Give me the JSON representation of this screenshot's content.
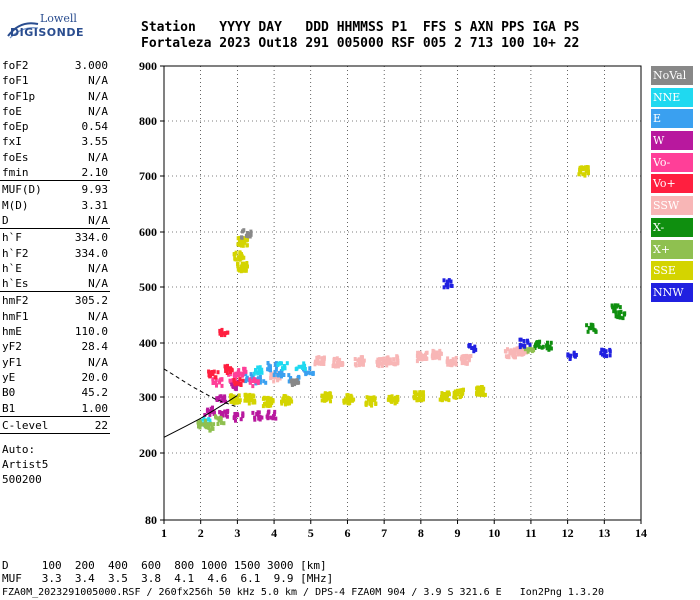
{
  "logo": {
    "line1": "Lowell",
    "line2": "DIGISONDE"
  },
  "header": {
    "labels": [
      "Station",
      "YYYY",
      "DAY",
      "DDD",
      "HHMMSS",
      "P1",
      "FFS",
      "S",
      "AXN",
      "PPS",
      "IGA",
      "PS"
    ],
    "values": [
      "Fortaleza",
      "2023",
      "Out18",
      "291",
      "005000",
      "RSF",
      "005",
      "2",
      "713",
      "100",
      "10+",
      "22"
    ]
  },
  "params": {
    "group1": [
      {
        "k": "foF2",
        "v": "3.000"
      },
      {
        "k": "foF1",
        "v": "N/A"
      },
      {
        "k": "foF1p",
        "v": "N/A"
      },
      {
        "k": "foE",
        "v": "N/A"
      },
      {
        "k": "foEp",
        "v": "0.54"
      },
      {
        "k": "fxI",
        "v": "3.55"
      },
      {
        "k": "foEs",
        "v": "N/A"
      },
      {
        "k": "fmin",
        "v": "2.10"
      }
    ],
    "group2": [
      {
        "k": "MUF(D)",
        "v": "9.93"
      },
      {
        "k": "M(D)",
        "v": "3.31"
      },
      {
        "k": "D",
        "v": "N/A"
      }
    ],
    "group3": [
      {
        "k": "h`F",
        "v": "334.0"
      },
      {
        "k": "h`F2",
        "v": "334.0"
      },
      {
        "k": "h`E",
        "v": "N/A"
      },
      {
        "k": "h`Es",
        "v": "N/A"
      }
    ],
    "group4": [
      {
        "k": "hmF2",
        "v": "305.2"
      },
      {
        "k": "hmF1",
        "v": "N/A"
      },
      {
        "k": "hmE",
        "v": "110.0"
      },
      {
        "k": "yF2",
        "v": "28.4"
      },
      {
        "k": "yF1",
        "v": "N/A"
      },
      {
        "k": "yE",
        "v": "20.0"
      },
      {
        "k": "B0",
        "v": "45.2"
      },
      {
        "k": "B1",
        "v": "1.00"
      }
    ],
    "group5": [
      {
        "k": "C-level",
        "v": "22"
      }
    ],
    "auto_lines": [
      "Auto:",
      "Artist5",
      "500200"
    ]
  },
  "legend": [
    {
      "label": "NoVal",
      "color": "#888888"
    },
    {
      "label": "NNE",
      "color": "#1fd9f0"
    },
    {
      "label": "E",
      "color": "#3aa0f0"
    },
    {
      "label": "W",
      "color": "#b8189e"
    },
    {
      "label": "Vo-",
      "color": "#ff3f98"
    },
    {
      "label": "Vo+",
      "color": "#ff1f3f"
    },
    {
      "label": "SSW",
      "color": "#f8b6b6"
    },
    {
      "label": "X-",
      "color": "#0f8f0f"
    },
    {
      "label": "X+",
      "color": "#8fc050"
    },
    {
      "label": "SSE",
      "color": "#d4d400"
    },
    {
      "label": "NNW",
      "color": "#2020e0"
    }
  ],
  "footer": {
    "d_label": "D",
    "d_values": [
      "100",
      "200",
      "400",
      "600",
      "800",
      "1000",
      "1500",
      "3000",
      "[km]"
    ],
    "muf_label": "MUF",
    "muf_values": [
      "3.3",
      "3.4",
      "3.5",
      "3.8",
      "4.1",
      "4.6",
      "6.1",
      "9.9",
      "[MHz]"
    ],
    "info": "FZA0M_2023291005000.RSF / 260fx256h 50 kHz 5.0 km / DPS-4 FZA0M 904 / 3.9 S 321.6 E   Ion2Png 1.3.20"
  },
  "chart_data": {
    "type": "scatter",
    "x": {
      "min": 1,
      "max": 14,
      "ticks": [
        1,
        2,
        3,
        4,
        5,
        6,
        7,
        8,
        9,
        10,
        11,
        12,
        13,
        14
      ],
      "unit": "MHz"
    },
    "y": {
      "min": 80,
      "max": 900,
      "ticks": [
        80,
        200,
        300,
        400,
        500,
        600,
        700,
        800,
        900
      ],
      "unit": "km"
    },
    "echo_clusters": [
      {
        "name": "SSE",
        "color": "#d4d400",
        "points": [
          [
            2.9,
            300
          ],
          [
            3.3,
            300
          ],
          [
            3.8,
            295
          ],
          [
            4.3,
            298
          ],
          [
            5.4,
            303
          ],
          [
            6.0,
            300
          ],
          [
            6.6,
            296
          ],
          [
            7.2,
            300
          ],
          [
            7.9,
            305
          ],
          [
            8.6,
            305
          ],
          [
            9.0,
            310
          ],
          [
            9.6,
            315
          ],
          [
            3.0,
            560
          ],
          [
            3.1,
            585
          ],
          [
            3.1,
            540
          ],
          [
            12.4,
            712
          ]
        ]
      },
      {
        "name": "SSW",
        "color": "#f8b6b6",
        "points": [
          [
            4.0,
            340
          ],
          [
            5.2,
            372
          ],
          [
            5.7,
            368
          ],
          [
            6.3,
            370
          ],
          [
            6.9,
            368
          ],
          [
            7.2,
            372
          ],
          [
            8.0,
            378
          ],
          [
            8.4,
            382
          ],
          [
            8.8,
            370
          ],
          [
            9.2,
            372
          ],
          [
            10.4,
            385
          ],
          [
            10.7,
            390
          ]
        ]
      },
      {
        "name": "W",
        "color": "#b8189e",
        "points": [
          [
            2.2,
            278
          ],
          [
            2.6,
            272
          ],
          [
            3.0,
            268
          ],
          [
            3.5,
            270
          ],
          [
            3.9,
            272
          ],
          [
            2.5,
            300
          ],
          [
            2.9,
            325
          ]
        ]
      },
      {
        "name": "E",
        "color": "#3aa0f0",
        "points": [
          [
            3.3,
            340
          ],
          [
            3.6,
            335
          ],
          [
            4.1,
            345
          ],
          [
            4.5,
            338
          ],
          [
            4.9,
            350
          ],
          [
            3.9,
            360
          ]
        ]
      },
      {
        "name": "NNE",
        "color": "#1fd9f0",
        "points": [
          [
            3.5,
            352
          ],
          [
            4.2,
            362
          ],
          [
            4.7,
            360
          ],
          [
            2.1,
            258
          ]
        ]
      },
      {
        "name": "Vo-",
        "color": "#ff3f98",
        "points": [
          [
            2.4,
            330
          ],
          [
            2.8,
            340
          ],
          [
            3.1,
            350
          ],
          [
            3.4,
            330
          ]
        ]
      },
      {
        "name": "Vo+",
        "color": "#ff1f3f",
        "points": [
          [
            2.3,
            345
          ],
          [
            2.7,
            355
          ],
          [
            3.0,
            330
          ],
          [
            2.6,
            420
          ]
        ]
      },
      {
        "name": "X-",
        "color": "#0f8f0f",
        "points": [
          [
            11.2,
            400
          ],
          [
            11.4,
            398
          ],
          [
            12.6,
            430
          ],
          [
            13.3,
            465
          ],
          [
            13.4,
            455
          ]
        ]
      },
      {
        "name": "X+",
        "color": "#8fc050",
        "points": [
          [
            2.0,
            255
          ],
          [
            2.2,
            250
          ],
          [
            2.5,
            262
          ],
          [
            10.9,
            392
          ]
        ]
      },
      {
        "name": "NNW",
        "color": "#2020e0",
        "points": [
          [
            9.4,
            395
          ],
          [
            8.7,
            510
          ],
          [
            10.8,
            403
          ],
          [
            13.0,
            385
          ],
          [
            12.1,
            380
          ]
        ]
      },
      {
        "name": "NoVal",
        "color": "#888888",
        "points": [
          [
            3.2,
            600
          ],
          [
            4.5,
            330
          ]
        ]
      }
    ],
    "profile_curve": [
      [
        1.0,
        228
      ],
      [
        1.6,
        248
      ],
      [
        2.0,
        262
      ],
      [
        2.4,
        278
      ],
      [
        2.7,
        290
      ],
      [
        3.0,
        303
      ]
    ],
    "trace_dashed": [
      [
        1.0,
        352
      ],
      [
        1.8,
        318
      ],
      [
        2.4,
        296
      ],
      [
        3.0,
        282
      ]
    ]
  }
}
